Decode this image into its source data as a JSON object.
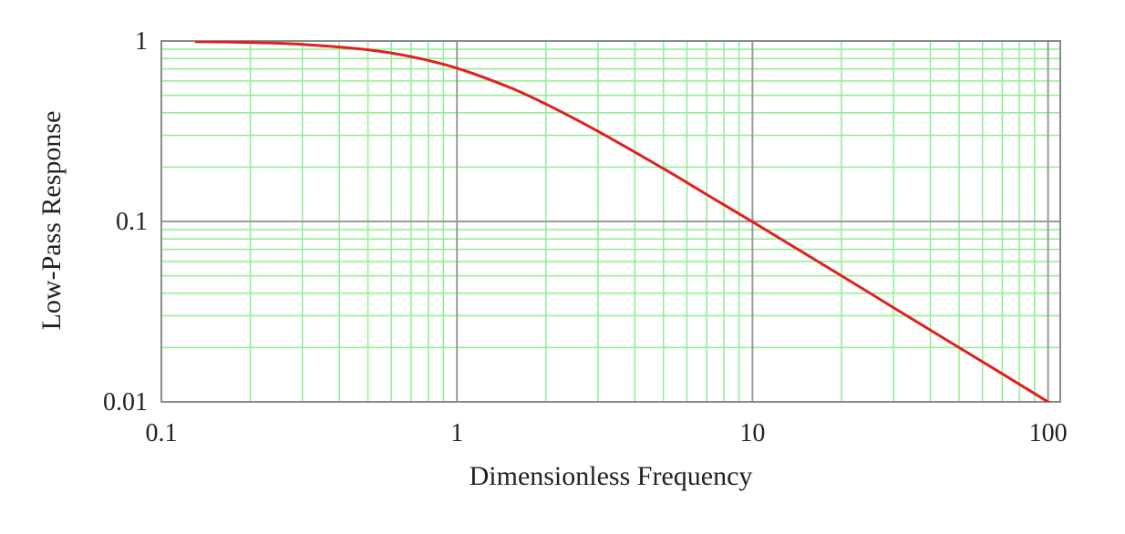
{
  "chart_data": {
    "type": "line",
    "xlabel": "Dimensionless Frequency",
    "ylabel": "Low-Pass Response",
    "x_scale": "log",
    "y_scale": "log",
    "xlim": [
      0.1,
      110
    ],
    "ylim": [
      0.01,
      1
    ],
    "grid": true,
    "x_ticks": [
      "0.1",
      "1",
      "10",
      "100"
    ],
    "y_ticks": [
      "1",
      "0.1",
      "0.01"
    ],
    "colors": {
      "line": "#e02020",
      "major_grid": "#9a9a9a",
      "minor_grid": "#90ee90",
      "frame": "#8a8a8a"
    },
    "series": [
      {
        "x": [
          0.13,
          0.2,
          0.3,
          0.5,
          0.7,
          1,
          1.5,
          2,
          3,
          5,
          7,
          10,
          20,
          30,
          50,
          70,
          100,
          110
        ],
        "y": [
          0.992,
          0.981,
          0.958,
          0.894,
          0.819,
          0.707,
          0.555,
          0.447,
          0.316,
          0.196,
          0.141,
          0.0995,
          0.05,
          0.0333,
          0.02,
          0.0143,
          0.01,
          0.0091
        ]
      }
    ]
  }
}
